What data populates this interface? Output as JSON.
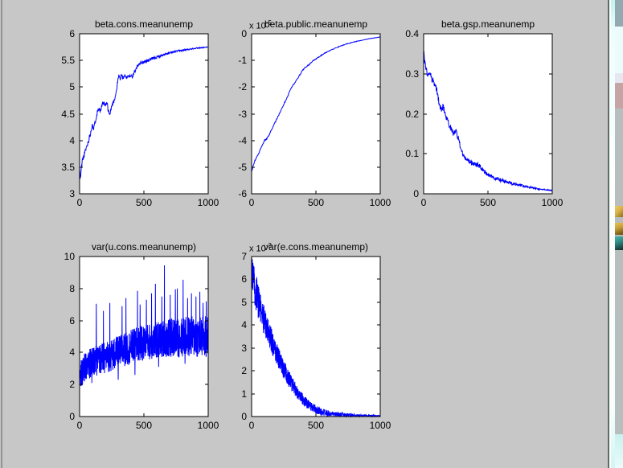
{
  "colors": {
    "figure_bg": "#c6c7c6",
    "plot_bg": "#ffffff",
    "axis": "#000000",
    "trace": "#0000ff",
    "desktop_highlight": "#eafdfd",
    "desktop_border": "#5e6d64"
  },
  "chart_data": [
    {
      "type": "line",
      "title": "beta.cons.meanunemp",
      "xlabel": "",
      "ylabel": "",
      "xlim": [
        0,
        1000
      ],
      "ylim": [
        3,
        6
      ],
      "xtick_values": [
        0,
        500,
        1000
      ],
      "xtick_labels": [
        "0",
        "500",
        "1000"
      ],
      "ytick_values": [
        6,
        5.5,
        5,
        4.5,
        4,
        3.5,
        3
      ],
      "ytick_labels": [
        "6",
        "5.5",
        "5",
        "4.5",
        "4",
        "3.5",
        "3"
      ],
      "line_color": "#0000ff",
      "samples": 450,
      "noise": {
        "abs_start": 0.05,
        "abs_end": 0.006,
        "rel": 0
      },
      "spikes": [
        [
          4,
          3.28
        ],
        [
          8,
          3.32
        ]
      ],
      "keypoints": [
        [
          0,
          3.45
        ],
        [
          8,
          3.33
        ],
        [
          20,
          3.62
        ],
        [
          35,
          3.72
        ],
        [
          50,
          3.85
        ],
        [
          65,
          3.95
        ],
        [
          75,
          4.05
        ],
        [
          90,
          4.18
        ],
        [
          100,
          4.33
        ],
        [
          108,
          4.2
        ],
        [
          118,
          4.31
        ],
        [
          130,
          4.45
        ],
        [
          140,
          4.55
        ],
        [
          152,
          4.62
        ],
        [
          162,
          4.55
        ],
        [
          175,
          4.66
        ],
        [
          188,
          4.7
        ],
        [
          200,
          4.65
        ],
        [
          212,
          4.7
        ],
        [
          225,
          4.55
        ],
        [
          235,
          4.48
        ],
        [
          248,
          4.63
        ],
        [
          262,
          4.72
        ],
        [
          275,
          4.8
        ],
        [
          288,
          4.95
        ],
        [
          296,
          5.1
        ],
        [
          305,
          5.22
        ],
        [
          315,
          5.15
        ],
        [
          325,
          5.23
        ],
        [
          338,
          5.17
        ],
        [
          350,
          5.22
        ],
        [
          362,
          5.16
        ],
        [
          375,
          5.22
        ],
        [
          388,
          5.2
        ],
        [
          400,
          5.23
        ],
        [
          412,
          5.18
        ],
        [
          425,
          5.28
        ],
        [
          438,
          5.33
        ],
        [
          450,
          5.4
        ],
        [
          465,
          5.44
        ],
        [
          480,
          5.46
        ],
        [
          500,
          5.47
        ],
        [
          525,
          5.49
        ],
        [
          550,
          5.52
        ],
        [
          575,
          5.54
        ],
        [
          600,
          5.56
        ],
        [
          625,
          5.58
        ],
        [
          650,
          5.6
        ],
        [
          675,
          5.62
        ],
        [
          700,
          5.64
        ],
        [
          725,
          5.655
        ],
        [
          750,
          5.67
        ],
        [
          775,
          5.68
        ],
        [
          800,
          5.69
        ],
        [
          825,
          5.7
        ],
        [
          850,
          5.71
        ],
        [
          875,
          5.72
        ],
        [
          900,
          5.73
        ],
        [
          925,
          5.735
        ],
        [
          950,
          5.74
        ],
        [
          975,
          5.745
        ],
        [
          1000,
          5.75
        ]
      ]
    },
    {
      "type": "line",
      "title": "beta.public.meanunemp",
      "exponent_prefix": "x 10",
      "exponent_power": "-5",
      "xlabel": "",
      "ylabel": "",
      "xlim": [
        0,
        1000
      ],
      "ylim": [
        -6,
        0
      ],
      "xtick_values": [
        0,
        500,
        1000
      ],
      "xtick_labels": [
        "0",
        "500",
        "1000"
      ],
      "ytick_values": [
        0,
        -1,
        -2,
        -3,
        -4,
        -5,
        -6
      ],
      "ytick_labels": [
        "0",
        "-1",
        "-2",
        "-3",
        "-4",
        "-5",
        "-6"
      ],
      "line_color": "#0000ff",
      "samples": 350,
      "noise": {
        "abs_start": 0.03,
        "abs_end": 0.006,
        "rel": 0
      },
      "keypoints": [
        [
          0,
          -5.15
        ],
        [
          10,
          -5.0
        ],
        [
          25,
          -4.75
        ],
        [
          40,
          -4.62
        ],
        [
          55,
          -4.5
        ],
        [
          70,
          -4.3
        ],
        [
          85,
          -4.15
        ],
        [
          100,
          -4.0
        ],
        [
          115,
          -3.95
        ],
        [
          130,
          -3.85
        ],
        [
          145,
          -3.7
        ],
        [
          160,
          -3.55
        ],
        [
          175,
          -3.4
        ],
        [
          190,
          -3.25
        ],
        [
          205,
          -3.1
        ],
        [
          220,
          -2.95
        ],
        [
          240,
          -2.75
        ],
        [
          260,
          -2.55
        ],
        [
          280,
          -2.35
        ],
        [
          300,
          -2.1
        ],
        [
          320,
          -1.95
        ],
        [
          340,
          -1.8
        ],
        [
          360,
          -1.65
        ],
        [
          380,
          -1.5
        ],
        [
          400,
          -1.35
        ],
        [
          420,
          -1.25
        ],
        [
          440,
          -1.18
        ],
        [
          460,
          -1.1
        ],
        [
          480,
          -1.0
        ],
        [
          500,
          -0.95
        ],
        [
          530,
          -0.85
        ],
        [
          560,
          -0.75
        ],
        [
          590,
          -0.67
        ],
        [
          620,
          -0.6
        ],
        [
          650,
          -0.54
        ],
        [
          680,
          -0.48
        ],
        [
          710,
          -0.43
        ],
        [
          740,
          -0.38
        ],
        [
          770,
          -0.34
        ],
        [
          800,
          -0.3
        ],
        [
          830,
          -0.27
        ],
        [
          860,
          -0.24
        ],
        [
          890,
          -0.21
        ],
        [
          920,
          -0.18
        ],
        [
          950,
          -0.16
        ],
        [
          975,
          -0.14
        ],
        [
          1000,
          -0.12
        ]
      ]
    },
    {
      "type": "line",
      "title": "beta.gsp.meanunemp",
      "xlabel": "",
      "ylabel": "",
      "xlim": [
        0,
        1000
      ],
      "ylim": [
        0,
        0.4
      ],
      "xtick_values": [
        0,
        500,
        1000
      ],
      "xtick_labels": [
        "0",
        "500",
        "1000"
      ],
      "ytick_values": [
        0.4,
        0.3,
        0.2,
        0.1,
        0
      ],
      "ytick_labels": [
        "0.4",
        "0.3",
        "0.2",
        "0.1",
        "0"
      ],
      "line_color": "#0000ff",
      "samples": 450,
      "noise": {
        "abs_start": 0.009,
        "abs_end": 0.0012,
        "rel": 0
      },
      "spikes": [
        [
          2,
          0.355
        ]
      ],
      "keypoints": [
        [
          0,
          0.35
        ],
        [
          10,
          0.325
        ],
        [
          20,
          0.31
        ],
        [
          30,
          0.295
        ],
        [
          40,
          0.3
        ],
        [
          50,
          0.305
        ],
        [
          60,
          0.29
        ],
        [
          70,
          0.285
        ],
        [
          80,
          0.275
        ],
        [
          90,
          0.268
        ],
        [
          100,
          0.262
        ],
        [
          110,
          0.245
        ],
        [
          120,
          0.225
        ],
        [
          130,
          0.215
        ],
        [
          140,
          0.21
        ],
        [
          150,
          0.218
        ],
        [
          160,
          0.21
        ],
        [
          170,
          0.195
        ],
        [
          180,
          0.185
        ],
        [
          190,
          0.18
        ],
        [
          200,
          0.172
        ],
        [
          210,
          0.165
        ],
        [
          220,
          0.158
        ],
        [
          230,
          0.15
        ],
        [
          240,
          0.155
        ],
        [
          250,
          0.16
        ],
        [
          260,
          0.148
        ],
        [
          270,
          0.138
        ],
        [
          280,
          0.125
        ],
        [
          290,
          0.115
        ],
        [
          300,
          0.102
        ],
        [
          310,
          0.095
        ],
        [
          320,
          0.09
        ],
        [
          330,
          0.086
        ],
        [
          340,
          0.083
        ],
        [
          350,
          0.08
        ],
        [
          365,
          0.078
        ],
        [
          380,
          0.076
        ],
        [
          395,
          0.074
        ],
        [
          410,
          0.072
        ],
        [
          420,
          0.074
        ],
        [
          430,
          0.07
        ],
        [
          445,
          0.066
        ],
        [
          460,
          0.06
        ],
        [
          475,
          0.054
        ],
        [
          490,
          0.05
        ],
        [
          510,
          0.046
        ],
        [
          530,
          0.043
        ],
        [
          550,
          0.04
        ],
        [
          575,
          0.037
        ],
        [
          600,
          0.034
        ],
        [
          625,
          0.031
        ],
        [
          650,
          0.029
        ],
        [
          675,
          0.027
        ],
        [
          700,
          0.025
        ],
        [
          725,
          0.023
        ],
        [
          750,
          0.021
        ],
        [
          775,
          0.02
        ],
        [
          800,
          0.018
        ],
        [
          825,
          0.016
        ],
        [
          850,
          0.015
        ],
        [
          875,
          0.013
        ],
        [
          900,
          0.012
        ],
        [
          925,
          0.011
        ],
        [
          950,
          0.01
        ],
        [
          975,
          0.009
        ],
        [
          1000,
          0.008
        ]
      ]
    },
    {
      "type": "line",
      "title": "var(u.cons.meanunemp)",
      "xlabel": "",
      "ylabel": "",
      "xlim": [
        0,
        1000
      ],
      "ylim": [
        0,
        10
      ],
      "xtick_values": [
        0,
        500,
        1000
      ],
      "xtick_labels": [
        "0",
        "500",
        "1000"
      ],
      "ytick_values": [
        10,
        8,
        6,
        4,
        2,
        0
      ],
      "ytick_labels": [
        "10",
        "8",
        "6",
        "4",
        "2",
        "0"
      ],
      "line_color": "#0000ff",
      "samples": 1000,
      "noise": {
        "abs_start": 0.9,
        "abs_end": 1.35,
        "rel": 0
      },
      "spikes": [
        [
          95,
          2.1
        ],
        [
          130,
          7.05
        ],
        [
          185,
          6.6
        ],
        [
          235,
          7.1
        ],
        [
          300,
          2.3
        ],
        [
          330,
          6.9
        ],
        [
          360,
          7.4
        ],
        [
          430,
          2.6
        ],
        [
          450,
          7.85
        ],
        [
          470,
          7.0
        ],
        [
          520,
          7.3
        ],
        [
          560,
          7.7
        ],
        [
          590,
          8.3
        ],
        [
          615,
          3.1
        ],
        [
          640,
          7.5
        ],
        [
          660,
          9.45
        ],
        [
          705,
          7.6
        ],
        [
          745,
          7.95
        ],
        [
          760,
          8.0
        ],
        [
          805,
          8.55
        ],
        [
          820,
          3.3
        ],
        [
          840,
          7.4
        ],
        [
          870,
          7.7
        ],
        [
          905,
          7.5
        ],
        [
          935,
          7.8
        ],
        [
          960,
          7.1
        ],
        [
          985,
          7.2
        ]
      ],
      "keypoints": [
        [
          0,
          2.6
        ],
        [
          30,
          3.0
        ],
        [
          60,
          3.2
        ],
        [
          100,
          3.4
        ],
        [
          150,
          3.55
        ],
        [
          200,
          3.7
        ],
        [
          250,
          3.85
        ],
        [
          300,
          4.0
        ],
        [
          350,
          4.2
        ],
        [
          400,
          4.35
        ],
        [
          450,
          4.5
        ],
        [
          500,
          4.6
        ],
        [
          550,
          4.7
        ],
        [
          600,
          4.75
        ],
        [
          650,
          4.85
        ],
        [
          700,
          4.9
        ],
        [
          750,
          4.95
        ],
        [
          800,
          4.95
        ],
        [
          850,
          5.0
        ],
        [
          900,
          5.0
        ],
        [
          950,
          4.95
        ],
        [
          1000,
          5.0
        ]
      ]
    },
    {
      "type": "line",
      "title": "var(e.cons.meanunemp)",
      "exponent_prefix": "x 10",
      "exponent_power": "-3",
      "xlabel": "",
      "ylabel": "",
      "xlim": [
        0,
        1000
      ],
      "ylim": [
        0,
        7
      ],
      "xtick_values": [
        0,
        500,
        1000
      ],
      "xtick_labels": [
        "0",
        "500",
        "1000"
      ],
      "ytick_values": [
        7,
        6,
        5,
        4,
        3,
        2,
        1,
        0
      ],
      "ytick_labels": [
        "7",
        "6",
        "5",
        "4",
        "3",
        "2",
        "1",
        "0"
      ],
      "line_color": "#0000ff",
      "samples": 900,
      "noise": {
        "abs_start": 0.3,
        "abs_end": 0.004,
        "rel": 0.09
      },
      "spikes": [
        [
          6,
          6.85
        ],
        [
          12,
          6.5
        ],
        [
          40,
          6.1
        ]
      ],
      "keypoints": [
        [
          0,
          6.1
        ],
        [
          8,
          6.4
        ],
        [
          15,
          5.9
        ],
        [
          25,
          5.6
        ],
        [
          35,
          5.4
        ],
        [
          45,
          5.15
        ],
        [
          55,
          4.95
        ],
        [
          65,
          4.75
        ],
        [
          80,
          4.5
        ],
        [
          95,
          4.25
        ],
        [
          110,
          4.0
        ],
        [
          125,
          3.75
        ],
        [
          140,
          3.5
        ],
        [
          155,
          3.3
        ],
        [
          170,
          3.1
        ],
        [
          185,
          2.9
        ],
        [
          200,
          2.7
        ],
        [
          220,
          2.45
        ],
        [
          240,
          2.2
        ],
        [
          260,
          1.95
        ],
        [
          280,
          1.75
        ],
        [
          300,
          1.55
        ],
        [
          320,
          1.35
        ],
        [
          340,
          1.18
        ],
        [
          360,
          1.02
        ],
        [
          380,
          0.88
        ],
        [
          400,
          0.75
        ],
        [
          420,
          0.63
        ],
        [
          440,
          0.53
        ],
        [
          460,
          0.44
        ],
        [
          480,
          0.37
        ],
        [
          500,
          0.31
        ],
        [
          525,
          0.25
        ],
        [
          550,
          0.2
        ],
        [
          575,
          0.16
        ],
        [
          600,
          0.13
        ],
        [
          630,
          0.1
        ],
        [
          660,
          0.085
        ],
        [
          700,
          0.07
        ],
        [
          750,
          0.06
        ],
        [
          800,
          0.05
        ],
        [
          850,
          0.045
        ],
        [
          900,
          0.04
        ],
        [
          950,
          0.038
        ],
        [
          1000,
          0.035
        ]
      ]
    }
  ]
}
